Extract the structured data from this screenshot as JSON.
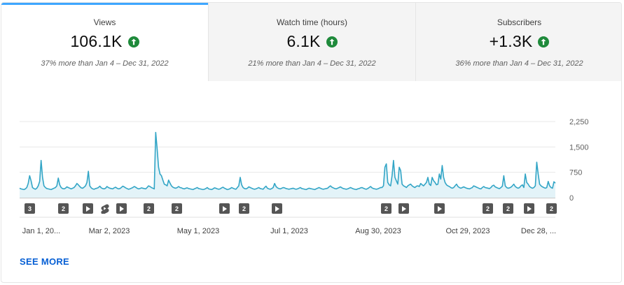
{
  "tabs": [
    {
      "title": "Views",
      "value": "106.1K",
      "compare": "37% more than Jan 4 – Dec 31, 2022",
      "active": true
    },
    {
      "title": "Watch time (hours)",
      "value": "6.1K",
      "compare": "21% more than Jan 4 – Dec 31, 2022",
      "active": false
    },
    {
      "title": "Subscribers",
      "value": "+1.3K",
      "compare": "36% more than Jan 4 – Dec 31, 2022",
      "active": false
    }
  ],
  "colors": {
    "line": "#32a5c6",
    "fill": "#e3f3f8",
    "accent": "#3ea6ff",
    "up": "#1f8a3b",
    "link": "#065fd4"
  },
  "icons": {
    "trend": "arrow-up-circle-icon"
  },
  "chart_data": {
    "type": "area",
    "y_ticks": [
      "2,250",
      "1,500",
      "750",
      "0"
    ],
    "ylim": [
      0,
      2250
    ],
    "x_ticks": [
      "Jan 1, 20...",
      "Mar 2, 2023",
      "May 1, 2023",
      "Jul 1, 2023",
      "Aug 30, 2023",
      "Oct 29, 2023",
      "Dec 28, ..."
    ],
    "values": [
      280,
      260,
      250,
      240,
      260,
      300,
      420,
      650,
      500,
      300,
      270,
      250,
      280,
      350,
      480,
      1100,
      600,
      350,
      300,
      270,
      260,
      250,
      240,
      260,
      280,
      300,
      350,
      580,
      380,
      300,
      270,
      260,
      280,
      320,
      300,
      280,
      260,
      280,
      300,
      350,
      420,
      380,
      330,
      290,
      280,
      310,
      350,
      450,
      780,
      350,
      290,
      260,
      250,
      270,
      280,
      300,
      340,
      290,
      270,
      260,
      280,
      330,
      300,
      280,
      270,
      260,
      290,
      310,
      280,
      260,
      270,
      300,
      340,
      320,
      290,
      270,
      250,
      260,
      280,
      300,
      330,
      310,
      280,
      260,
      270,
      290,
      280,
      270,
      260,
      300,
      350,
      330,
      300,
      280,
      260,
      1930,
      1450,
      900,
      700,
      650,
      520,
      400,
      380,
      350,
      520,
      430,
      350,
      310,
      290,
      280,
      300,
      330,
      300,
      290,
      270,
      260,
      280,
      290,
      270,
      260,
      250,
      240,
      260,
      280,
      300,
      270,
      260,
      250,
      240,
      250,
      270,
      300,
      260,
      250,
      240,
      260,
      290,
      280,
      260,
      250,
      260,
      290,
      310,
      280,
      260,
      240,
      250,
      270,
      300,
      280,
      260,
      250,
      300,
      350,
      600,
      380,
      300,
      270,
      260,
      280,
      320,
      300,
      280,
      260,
      250,
      260,
      280,
      300,
      270,
      260,
      250,
      300,
      340,
      280,
      260,
      250,
      270,
      300,
      420,
      330,
      290,
      270,
      260,
      280,
      300,
      290,
      270,
      260,
      250,
      260,
      270,
      280,
      260,
      250,
      260,
      280,
      300,
      270,
      260,
      250,
      240,
      260,
      280,
      270,
      260,
      250,
      240,
      260,
      280,
      300,
      280,
      260,
      250,
      260,
      270,
      280,
      320,
      350,
      310,
      290,
      270,
      260,
      280,
      300,
      320,
      290,
      270,
      260,
      250,
      260,
      280,
      300,
      280,
      260,
      250,
      240,
      260,
      270,
      290,
      300,
      280,
      260,
      250,
      270,
      300,
      330,
      290,
      270,
      260,
      250,
      260,
      280,
      300,
      300,
      350,
      900,
      1000,
      450,
      380,
      350,
      650,
      1100,
      600,
      500,
      400,
      900,
      800,
      400,
      350,
      330,
      300,
      350,
      380,
      400,
      350,
      320,
      300,
      340,
      350,
      330,
      420,
      380,
      350,
      400,
      450,
      600,
      400,
      360,
      600,
      500,
      450,
      380,
      400,
      700,
      550,
      950,
      600,
      450,
      380,
      350,
      330,
      300,
      280,
      300,
      350,
      400,
      330,
      300,
      280,
      300,
      320,
      300,
      280,
      270,
      260,
      280,
      300,
      350,
      330,
      310,
      290,
      270,
      260,
      300,
      330,
      300,
      290,
      280,
      270,
      300,
      350,
      370,
      320,
      300,
      280,
      270,
      300,
      340,
      650,
      350,
      300,
      280,
      290,
      310,
      350,
      400,
      330,
      300,
      280,
      300,
      350,
      380,
      300,
      700,
      450,
      400,
      330,
      300,
      280,
      300,
      350,
      1050,
      700,
      400,
      350,
      320,
      300,
      280,
      300,
      480,
      350,
      300,
      280,
      470,
      430
    ]
  },
  "markers": [
    {
      "label": "3",
      "kind": "count"
    },
    {
      "label": "2",
      "kind": "count"
    },
    {
      "label": "",
      "kind": "play"
    },
    {
      "label": "",
      "kind": "short"
    },
    {
      "label": "",
      "kind": "play"
    },
    {
      "label": "2",
      "kind": "count"
    },
    {
      "label": "2",
      "kind": "count"
    },
    {
      "label": "",
      "kind": "play"
    },
    {
      "label": "2",
      "kind": "count"
    },
    {
      "label": "",
      "kind": "play"
    },
    {
      "label": "2",
      "kind": "count"
    },
    {
      "label": "",
      "kind": "play"
    },
    {
      "label": "",
      "kind": "play"
    },
    {
      "label": "2",
      "kind": "count"
    },
    {
      "label": "2",
      "kind": "count"
    },
    {
      "label": "",
      "kind": "play"
    },
    {
      "label": "2",
      "kind": "count"
    }
  ],
  "footer": {
    "see_more": "SEE MORE"
  }
}
